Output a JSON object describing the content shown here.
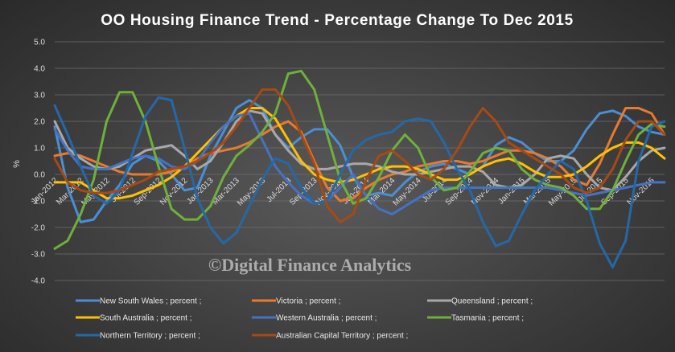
{
  "colors": {
    "New South Wales": "#4a8fd4",
    "Victoria": "#e87a2e",
    "Queensland": "#a8a8a8",
    "South Australia": "#ffc000",
    "Western Australia": "#4472c4",
    "Tasmania": "#6fb03a",
    "Northern Territory": "#2568a8",
    "Australian Capital Territory": "#a64a14"
  },
  "chart_data": {
    "type": "line",
    "title": "OO Housing Finance Trend  - Percentage Change To Dec 2015",
    "xlabel": "",
    "ylabel": "%",
    "ylim": [
      -4.0,
      5.0
    ],
    "yticks": [
      "-4.0",
      "-3.0",
      "-2.0",
      "-1.0",
      "0.0",
      "1.0",
      "2.0",
      "3.0",
      "4.0",
      "5.0"
    ],
    "grid": true,
    "legend_position": "bottom",
    "watermark": "©Digital Finance Analytics",
    "x": [
      "Jan-2012",
      "Feb-2012",
      "Mar-2012",
      "Apr-2012",
      "May-2012",
      "Jun-2012",
      "Jul-2012",
      "Aug-2012",
      "Sep-2012",
      "Oct-2012",
      "Nov-2012",
      "Dec-2012",
      "Jan-2013",
      "Feb-2013",
      "Mar-2013",
      "Apr-2013",
      "May-2013",
      "Jun-2013",
      "Jul-2013",
      "Aug-2013",
      "Sep-2013",
      "Oct-2013",
      "Nov-2013",
      "Dec-2013",
      "Jan-2014",
      "Feb-2014",
      "Mar-2014",
      "Apr-2014",
      "May-2014",
      "Jun-2014",
      "Jul-2014",
      "Aug-2014",
      "Sep-2014",
      "Oct-2014",
      "Nov-2014",
      "Dec-2014",
      "Jan-2015",
      "Feb-2015",
      "Mar-2015",
      "Apr-2015",
      "May-2015",
      "Jun-2015",
      "Jul-2015",
      "Aug-2015",
      "Sep-2015",
      "Oct-2015",
      "Nov-2015",
      "Dec-2015"
    ],
    "xtick_labels": [
      "Jan-2012",
      "Mar-2012",
      "May-2012",
      "Jul-2012",
      "Sep-2012",
      "Nov-2012",
      "Jan-2013",
      "Mar-2013",
      "May-2013",
      "Jul-2013",
      "Sep-2013",
      "Nov-2013",
      "Jan-2014",
      "Mar-2014",
      "May-2014",
      "Jul-2014",
      "Sep-2014",
      "Nov-2014",
      "Jan-2015",
      "Mar-2015",
      "May-2015",
      "Jul-2015",
      "Sep-2015",
      "Nov-2015"
    ],
    "series": [
      {
        "name": "New South Wales ; percent ;",
        "key": "New South Wales",
        "values": [
          1.8,
          -0.5,
          -1.8,
          -1.7,
          -1.0,
          -0.4,
          0.4,
          0.7,
          0.5,
          0.0,
          -0.6,
          -0.5,
          0.7,
          1.6,
          2.5,
          2.8,
          2.5,
          1.5,
          1.0,
          1.4,
          1.7,
          1.7,
          1.1,
          -0.1,
          -0.8,
          -0.7,
          -0.8,
          -0.3,
          0.1,
          0.3,
          0.4,
          0.2,
          0.0,
          0.3,
          1.1,
          1.4,
          1.2,
          0.8,
          0.5,
          0.5,
          0.9,
          1.7,
          2.3,
          2.4,
          2.2,
          1.8,
          1.6,
          1.5
        ]
      },
      {
        "name": "Victoria ; percent ;",
        "key": "Victoria",
        "values": [
          0.7,
          0.8,
          0.7,
          0.5,
          0.3,
          0.1,
          0.0,
          0.0,
          0.0,
          0.1,
          0.3,
          0.6,
          0.8,
          0.9,
          1.0,
          1.2,
          1.5,
          1.8,
          2.0,
          1.6,
          0.5,
          -0.5,
          -1.0,
          -0.9,
          -0.5,
          -0.2,
          0.0,
          0.1,
          0.3,
          0.4,
          0.5,
          0.5,
          0.4,
          0.5,
          0.7,
          0.9,
          0.9,
          0.8,
          0.6,
          0.3,
          -0.2,
          -0.4,
          0.4,
          1.5,
          2.5,
          2.5,
          2.3,
          1.5
        ]
      },
      {
        "name": "Queensland ; percent ;",
        "key": "Queensland",
        "values": [
          2.0,
          1.0,
          0.6,
          0.3,
          0.2,
          0.3,
          0.6,
          0.9,
          1.0,
          1.1,
          0.7,
          0.2,
          0.5,
          1.2,
          2.0,
          2.4,
          2.3,
          1.5,
          0.9,
          0.4,
          0.2,
          0.2,
          0.3,
          0.4,
          0.4,
          0.3,
          0.1,
          0.0,
          0.0,
          0.1,
          0.2,
          0.3,
          0.3,
          0.1,
          -0.4,
          -0.5,
          -0.4,
          0.0,
          0.6,
          0.7,
          0.6,
          0.0,
          -0.5,
          -0.6,
          -0.1,
          0.5,
          0.9,
          1.0
        ]
      },
      {
        "name": "South Australia ; percent ;",
        "key": "South Australia",
        "values": [
          -0.3,
          -0.3,
          -0.3,
          -0.6,
          -0.9,
          -0.9,
          -0.8,
          -0.6,
          -0.4,
          -0.1,
          0.3,
          0.8,
          1.3,
          1.8,
          2.2,
          2.5,
          2.5,
          2.1,
          1.3,
          0.5,
          0.0,
          -0.2,
          -0.3,
          -0.2,
          0.0,
          0.2,
          0.3,
          0.3,
          0.2,
          0.0,
          -0.2,
          -0.2,
          0.0,
          0.3,
          0.5,
          0.6,
          0.4,
          0.1,
          -0.1,
          -0.1,
          0.0,
          0.3,
          0.7,
          1.0,
          1.2,
          1.2,
          1.0,
          0.6
        ]
      },
      {
        "name": "Western Australia ; percent ;",
        "key": "Western Australia",
        "values": [
          1.7,
          0.9,
          0.3,
          0.2,
          0.2,
          0.4,
          0.6,
          0.7,
          0.6,
          0.3,
          0.2,
          0.5,
          1.2,
          1.8,
          2.2,
          2.3,
          1.3,
          0.3,
          -0.3,
          -0.8,
          -1.1,
          -1.0,
          -0.5,
          0.0,
          -0.8,
          -1.3,
          -1.5,
          -1.2,
          -0.9,
          -0.6,
          -0.5,
          -0.5,
          -0.5,
          -0.5,
          -0.5,
          -0.5,
          -0.5,
          -0.5,
          -0.5,
          -0.6,
          -0.7,
          -0.8,
          -0.7,
          -0.6,
          -0.5,
          -0.4,
          -0.3,
          -0.3
        ]
      },
      {
        "name": "Tasmania ; percent ;",
        "key": "Tasmania",
        "values": [
          -2.8,
          -2.5,
          -1.5,
          -0.2,
          2.0,
          3.1,
          3.1,
          2.0,
          0.3,
          -1.3,
          -1.7,
          -1.7,
          -1.2,
          -0.1,
          0.7,
          1.1,
          1.6,
          2.3,
          3.8,
          3.9,
          3.2,
          1.5,
          -0.2,
          -1.1,
          -0.9,
          -0.1,
          0.9,
          1.5,
          1.0,
          -0.1,
          -0.6,
          -0.5,
          0.1,
          0.8,
          1.0,
          0.9,
          0.2,
          -0.2,
          -0.4,
          -0.5,
          -0.8,
          -1.3,
          -1.3,
          -0.6,
          0.5,
          1.5,
          1.9,
          1.8
        ]
      },
      {
        "name": "Northern Territory ; percent ;",
        "key": "Northern Territory",
        "values": [
          2.6,
          1.5,
          0.3,
          -0.8,
          -1.1,
          -0.6,
          0.8,
          2.2,
          2.9,
          2.8,
          1.0,
          -0.9,
          -2.0,
          -2.6,
          -2.2,
          -1.2,
          -0.2,
          0.6,
          0.4,
          -0.5,
          -1.1,
          -1.0,
          0.0,
          0.9,
          1.3,
          1.5,
          1.6,
          2.0,
          2.1,
          2.0,
          1.2,
          0.2,
          -0.6,
          -1.8,
          -2.7,
          -2.5,
          -1.5,
          -0.6,
          0.0,
          0.5,
          0.2,
          -1.0,
          -2.6,
          -3.5,
          -2.5,
          0.5,
          1.8,
          2.0
        ]
      },
      {
        "name": "Australian Capital Territory ; percent ;",
        "key": "Australian Capital Territory",
        "values": [
          0.6,
          -0.3,
          -0.6,
          -0.7,
          -0.7,
          -0.6,
          -0.4,
          -0.2,
          0.1,
          0.2,
          0.3,
          0.5,
          0.8,
          1.2,
          1.8,
          2.5,
          3.2,
          3.2,
          2.6,
          1.5,
          0.4,
          -1.2,
          -1.8,
          -1.5,
          -0.2,
          0.7,
          0.9,
          0.5,
          0.0,
          -0.2,
          0.2,
          0.9,
          1.8,
          2.5,
          2.0,
          1.2,
          0.9,
          0.6,
          0.3,
          0.0,
          -0.5,
          -0.7,
          -0.5,
          0.2,
          1.3,
          2.0,
          2.0,
          1.5
        ]
      }
    ]
  }
}
